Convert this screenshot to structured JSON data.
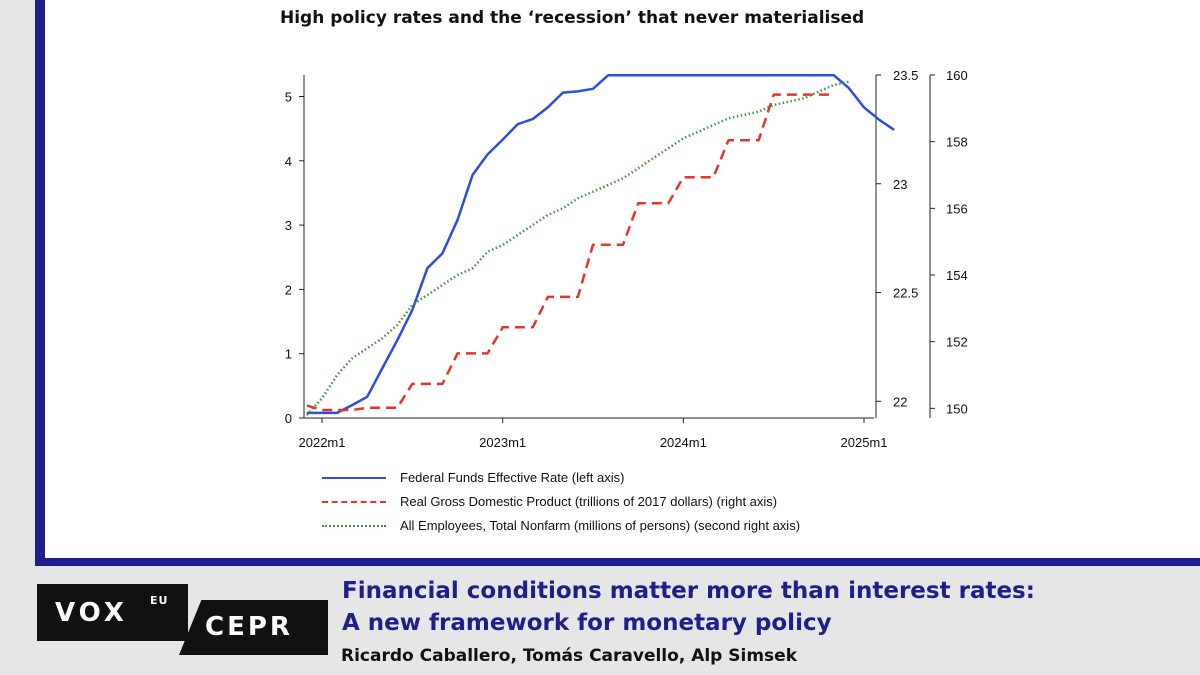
{
  "chart_data": {
    "type": "line",
    "title": "High policy rates and the ‘recession’ that never materialised",
    "x_ticks": [
      "2022m1",
      "2023m1",
      "2024m1",
      "2025m1"
    ],
    "axes": {
      "left": {
        "ticks": [
          "0",
          "1",
          "2",
          "3",
          "4",
          "5"
        ],
        "ylim": [
          0,
          5.35
        ]
      },
      "right": {
        "ticks": [
          "22",
          "22.5",
          "23",
          "23.5"
        ],
        "ylim": [
          21.96,
          23.5
        ]
      },
      "second_right": {
        "ticks": [
          "150",
          "152",
          "154",
          "156",
          "158",
          "160"
        ],
        "ylim": [
          149.8,
          160
        ]
      }
    },
    "x_start": "2021-12",
    "series": [
      {
        "name": "Federal Funds Effective Rate (left axis)",
        "axis": "left",
        "color": "#2b4de0",
        "style": "solid",
        "values": [
          0.08,
          0.08,
          0.08,
          0.2,
          0.33,
          0.77,
          1.21,
          1.68,
          2.33,
          2.56,
          3.08,
          3.78,
          4.1,
          4.33,
          4.57,
          4.65,
          4.83,
          5.06,
          5.08,
          5.12,
          5.33,
          5.33,
          5.33,
          5.33,
          5.33,
          5.33,
          5.33,
          5.33,
          5.33,
          5.33,
          5.33,
          5.33,
          5.33,
          5.33,
          5.33,
          5.33,
          5.13,
          4.83,
          4.64,
          4.48
        ]
      },
      {
        "name": "Real Gross Domestic Product (trillions of 2017 dollars) (right axis)",
        "axis": "right",
        "color": "#e8332d",
        "style": "dashed",
        "x": [
          "2021-12",
          "2022-01",
          "2022-04",
          "2022-07",
          "2022-10",
          "2023-01",
          "2023-04",
          "2023-07",
          "2023-10",
          "2024-01",
          "2024-04",
          "2024-07",
          "2024-10"
        ],
        "values": [
          21.98,
          21.96,
          21.97,
          22.08,
          22.22,
          22.34,
          22.48,
          22.72,
          22.91,
          23.03,
          23.2,
          23.41,
          23.41
        ]
      },
      {
        "name": "All Employees, Total Nonfarm (millions of persons) (second right axis)",
        "axis": "second_right",
        "color": "#3a9a3a",
        "style": "dotted",
        "values": [
          149.8,
          150.3,
          151.0,
          151.5,
          151.8,
          152.1,
          152.5,
          153.1,
          153.4,
          153.7,
          154.0,
          154.2,
          154.7,
          154.9,
          155.2,
          155.5,
          155.8,
          156.0,
          156.3,
          156.5,
          156.7,
          156.9,
          157.2,
          157.5,
          157.8,
          158.1,
          158.3,
          158.5,
          158.7,
          158.8,
          158.9,
          159.1,
          159.2,
          159.3,
          159.5,
          159.7,
          159.8
        ]
      }
    ]
  },
  "colors": {
    "frame": "#1e1e8c",
    "headline": "#1e1e8c"
  },
  "branding": {
    "vox": "VOX",
    "vox_sup": "EU",
    "cepr": "CEPR"
  },
  "article": {
    "headline_line1": "Financial conditions matter more than interest rates:",
    "headline_line2": "A new framework for monetary policy",
    "authors": "Ricardo Caballero, Tomás Caravello, Alp Simsek"
  }
}
